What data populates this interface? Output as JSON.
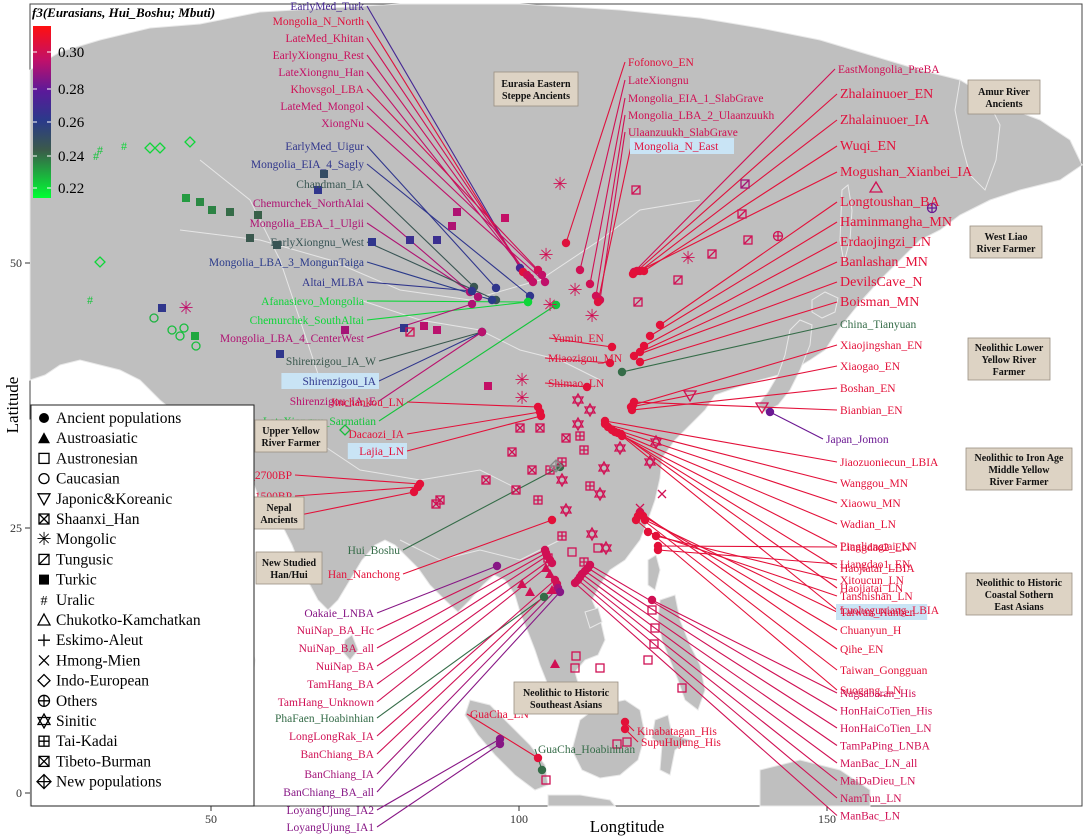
{
  "colors": {
    "ocean": "#ffffff",
    "land": "#bfbfbf",
    "border": "#e8e8e8",
    "group_box_fill": "#ddd3c4",
    "group_box_stroke": "#9a8f82",
    "highlight": "#c9e4f5"
  },
  "axes": {
    "xlabel": "Longtitude",
    "ylabel": "Latitude",
    "xticks": [
      "50",
      "100",
      "150"
    ],
    "yticks": [
      "0",
      "25",
      "50"
    ]
  },
  "colorbar": {
    "title": "f3(Eurasians, Hui_Boshu; Mbuti)",
    "ticks": [
      "0.30",
      "0.28",
      "0.26",
      "0.24",
      "0.22"
    ],
    "range": [
      0.215,
      0.315
    ],
    "stops": [
      "#00ff33",
      "#2a2a6a",
      "#2c2c9a",
      "#880099",
      "#ff1010"
    ]
  },
  "legend": [
    {
      "label": "Ancient populations",
      "icon": "filled-circle"
    },
    {
      "label": "Austroasiatic",
      "icon": "filled-triangle"
    },
    {
      "label": "Austronesian",
      "icon": "open-square"
    },
    {
      "label": "Caucasian",
      "icon": "open-circle"
    },
    {
      "label": "Japonic&Koreanic",
      "icon": "open-down-triangle"
    },
    {
      "label": "Shaanxi_Han",
      "icon": "boxed-x"
    },
    {
      "label": "Mongolic",
      "icon": "asterisk"
    },
    {
      "label": "Tungusic",
      "icon": "boxed-slash"
    },
    {
      "label": "Turkic",
      "icon": "filled-square"
    },
    {
      "label": "Uralic",
      "icon": "hash"
    },
    {
      "label": "Chukotko-Kamchatkan",
      "icon": "open-triangle"
    },
    {
      "label": "Eskimo-Aleut",
      "icon": "plus"
    },
    {
      "label": "Hmong-Mien",
      "icon": "cross"
    },
    {
      "label": "Indo-European",
      "icon": "open-diamond"
    },
    {
      "label": "Others",
      "icon": "circle-plus"
    },
    {
      "label": "Sinitic",
      "icon": "star-of-david"
    },
    {
      "label": "Tai-Kadai",
      "icon": "boxed-plus"
    },
    {
      "label": "Tibeto-Burman",
      "icon": "boxed-x-thin"
    },
    {
      "label": "New populations",
      "icon": "diamond-plus"
    }
  ],
  "groups": [
    {
      "label": "Eurasia Eastern Steppe Ancients",
      "lines": [
        "Eurasia Eastern",
        "Steppe Ancients"
      ]
    },
    {
      "label": "Amur River Ancients",
      "lines": [
        "Amur River",
        "Ancients"
      ]
    },
    {
      "label": "West Liao River Farmer",
      "lines": [
        "West Liao",
        "River Farmer"
      ]
    },
    {
      "label": "Neolithic Lower Yellow River Farmer",
      "lines": [
        "Neolithic Lower",
        "Yellow  River",
        "Farmer"
      ]
    },
    {
      "label": "Upper Yellow River Farmer",
      "lines": [
        "Upper Yellow",
        "River Farmer"
      ]
    },
    {
      "label": "Neolithic to Iron Age Middle Yellow River Farmer",
      "lines": [
        "Neolithic to Iron Age",
        "Middle Yellow",
        "River Farmer"
      ]
    },
    {
      "label": "Nepal Ancients",
      "lines": [
        "Nepal",
        "Ancients"
      ]
    },
    {
      "label": "New Studied Han/Hui",
      "lines": [
        "New Studied",
        "Han/Hui"
      ]
    },
    {
      "label": "Neolithic to Historic Coastal Sothern East Asians",
      "lines": [
        "Neolithic to Historic",
        "Coastal Sothern",
        "East Asians"
      ]
    },
    {
      "label": "Neolithic to Historic Southeast Asians",
      "lines": [
        "Neolithic to Historic",
        "Southeast Asians"
      ]
    }
  ],
  "populations": [
    {
      "name": "EarlyMed_Turk",
      "f3": 0.27
    },
    {
      "name": "Mongolia_N_North",
      "f3": 0.305
    },
    {
      "name": "LateMed_Khitan",
      "f3": 0.3
    },
    {
      "name": "EarlyXiongnu_Rest",
      "f3": 0.298
    },
    {
      "name": "LateXiongnu_Han",
      "f3": 0.296
    },
    {
      "name": "Khovsgol_LBA",
      "f3": 0.3
    },
    {
      "name": "LateMed_Mongol",
      "f3": 0.296
    },
    {
      "name": "XiongNu",
      "f3": 0.295
    },
    {
      "name": "EarlyMed_Uigur",
      "f3": 0.262
    },
    {
      "name": "Mongolia_EIA_4_Sagly",
      "f3": 0.262
    },
    {
      "name": "Chandman_IA",
      "f3": 0.245
    },
    {
      "name": "Chemurchek_NorthAlai",
      "f3": 0.292
    },
    {
      "name": "Mongolia_EBA_1_Ulgii",
      "f3": 0.292
    },
    {
      "name": "EarlyXiongnu_West",
      "f3": 0.246
    },
    {
      "name": "Mongolia_LBA_3_MongunTaiga",
      "f3": 0.26
    },
    {
      "name": "Altai_MLBA",
      "f3": 0.262
    },
    {
      "name": "Afanasievo_Mongolia",
      "f3": 0.222
    },
    {
      "name": "Chemurchek_SouthAltai",
      "f3": 0.222
    },
    {
      "name": "Mongolia_LBA_4_CenterWest",
      "f3": 0.292
    },
    {
      "name": "Shirenzigou_IA_W",
      "f3": 0.244
    },
    {
      "name": "Shirenzigou_IA",
      "f3": 0.262
    },
    {
      "name": "Shirenzigou_IA_E",
      "f3": 0.294
    },
    {
      "name": "LateXiongnu_Sarmatian",
      "f3": 0.225
    },
    {
      "name": "Fofonovo_EN",
      "f3": 0.305
    },
    {
      "name": "LateXiongnu",
      "f3": 0.3
    },
    {
      "name": "Mongolia_EIA_1_SlabGrave",
      "f3": 0.3
    },
    {
      "name": "Mongolia_LBA_2_Ulaanzuukh",
      "f3": 0.3
    },
    {
      "name": "Ulaanzuukh_SlabGrave",
      "f3": 0.3
    },
    {
      "name": "Mongolia_N_East",
      "f3": 0.305
    },
    {
      "name": "EastMongolia_PreBA",
      "f3": 0.3
    },
    {
      "name": "Zhalainuoer_EN",
      "f3": 0.305
    },
    {
      "name": "Zhalainuoer_IA",
      "f3": 0.305
    },
    {
      "name": "Wuqi_EN",
      "f3": 0.306
    },
    {
      "name": "Mogushan_Xianbei_IA",
      "f3": 0.306
    },
    {
      "name": "Longtoushan_BA",
      "f3": 0.306
    },
    {
      "name": "Haminmangha_MN",
      "f3": 0.306
    },
    {
      "name": "Erdaojingzi_LN",
      "f3": 0.306
    },
    {
      "name": "Banlashan_MN",
      "f3": 0.306
    },
    {
      "name": "DevilsCave_N",
      "f3": 0.306
    },
    {
      "name": "Boisman_MN",
      "f3": 0.306
    },
    {
      "name": "China_Tianyuan",
      "f3": 0.24
    },
    {
      "name": "Xiaojingshan_EN",
      "f3": 0.306
    },
    {
      "name": "Xiaogao_EN",
      "f3": 0.306
    },
    {
      "name": "Boshan_EN",
      "f3": 0.306
    },
    {
      "name": "Bianbian_EN",
      "f3": 0.306
    },
    {
      "name": "Japan_Jomon",
      "f3": 0.28
    },
    {
      "name": "Jiaozuoniecun_LBIA",
      "f3": 0.306
    },
    {
      "name": "Wanggou_MN",
      "f3": 0.306
    },
    {
      "name": "Xiaowu_MN",
      "f3": 0.306
    },
    {
      "name": "Wadian_LN",
      "f3": 0.306
    },
    {
      "name": "Pingliangtai_LN",
      "f3": 0.306
    },
    {
      "name": "Haojiatai_LBIA",
      "f3": 0.306
    },
    {
      "name": "Haojiatai_LN",
      "f3": 0.306
    },
    {
      "name": "Luoheguxiang_LBIA",
      "f3": 0.306
    },
    {
      "name": "Yumin_EN",
      "f3": 0.306
    },
    {
      "name": "Miaozigou_MN",
      "f3": 0.306
    },
    {
      "name": "Shimao_LN",
      "f3": 0.306
    },
    {
      "name": "Jinchankou_LN",
      "f3": 0.306
    },
    {
      "name": "Dacaozi_IA",
      "f3": 0.306
    },
    {
      "name": "Lajia_LN",
      "f3": 0.306
    },
    {
      "name": "Chokhopani_2700BP",
      "f3": 0.306
    },
    {
      "name": "Samdzong_1500BP",
      "f3": 0.306
    },
    {
      "name": "Mebrak_2125BP",
      "f3": 0.306
    },
    {
      "name": "Hui_Boshu",
      "f3": 0.24
    },
    {
      "name": "Han_Nanchong",
      "f3": 0.306
    },
    {
      "name": "Liangdao2_EN",
      "f3": 0.306
    },
    {
      "name": "Liangdao1_EN",
      "f3": 0.306
    },
    {
      "name": "Xitoucun_LN",
      "f3": 0.306
    },
    {
      "name": "Tanshishan_LN",
      "f3": 0.306
    },
    {
      "name": "Taiwan_Hanben",
      "f3": 0.306
    },
    {
      "name": "Chuanyun_H",
      "f3": 0.306
    },
    {
      "name": "Qihe_EN",
      "f3": 0.306
    },
    {
      "name": "Taiwan_Gongguan",
      "f3": 0.306
    },
    {
      "name": "Suogang_LN",
      "f3": 0.306
    },
    {
      "name": "Oakaie_LNBA",
      "f3": 0.285
    },
    {
      "name": "NuiNap_BA_Hc",
      "f3": 0.3
    },
    {
      "name": "NuiNap_BA_all",
      "f3": 0.3
    },
    {
      "name": "NuiNap_BA",
      "f3": 0.3
    },
    {
      "name": "TamHang_BA",
      "f3": 0.3
    },
    {
      "name": "TamHang_Unknown",
      "f3": 0.3
    },
    {
      "name": "PhaFaen_Hoabinhian",
      "f3": 0.24
    },
    {
      "name": "LongLongRak_IA",
      "f3": 0.3
    },
    {
      "name": "BanChiang_BA",
      "f3": 0.3
    },
    {
      "name": "BanChiang_IA",
      "f3": 0.29
    },
    {
      "name": "BanChiang_BA_all",
      "f3": 0.285
    },
    {
      "name": "LoyangUjung_IA2",
      "f3": 0.285
    },
    {
      "name": "LoyangUjung_IA1",
      "f3": 0.285
    },
    {
      "name": "GuaCha_LN",
      "f3": 0.306
    },
    {
      "name": "GuaCha_Hoabinhian",
      "f3": 0.24
    },
    {
      "name": "Kinabatagan_His",
      "f3": 0.306
    },
    {
      "name": "SupuHujung_His",
      "f3": 0.306
    },
    {
      "name": "Nagsabaran_His",
      "f3": 0.3
    },
    {
      "name": "HonHaiCoTien_His",
      "f3": 0.3
    },
    {
      "name": "HonHaiCoTien_LN",
      "f3": 0.3
    },
    {
      "name": "TamPaPing_LNBA",
      "f3": 0.3
    },
    {
      "name": "ManBac_LN_all",
      "f3": 0.3
    },
    {
      "name": "MaiDaDieu_LN",
      "f3": 0.3
    },
    {
      "name": "NamTun_LN",
      "f3": 0.3
    },
    {
      "name": "ManBac_LN",
      "f3": 0.3
    }
  ]
}
